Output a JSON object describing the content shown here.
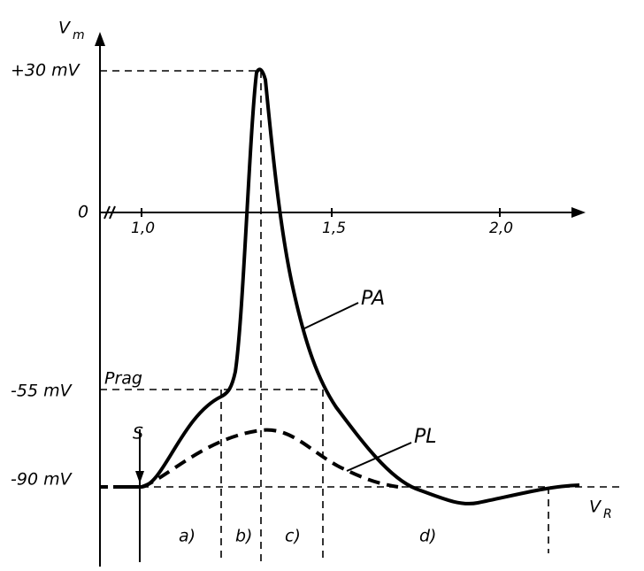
{
  "axes": {
    "y_label": {
      "symbol": "V",
      "subscript": "m"
    },
    "x_label": {
      "symbol": "V",
      "subscript": "R"
    },
    "y_ticks": [
      "+30 mV",
      "0",
      "-55 mV",
      "-90 mV"
    ],
    "x_ticks": [
      "1,0",
      "1,5",
      "2,0"
    ]
  },
  "labels": {
    "threshold": "Prag",
    "stimulus": "S",
    "action_potential": "PA",
    "local_potential": "PL"
  },
  "phases": [
    "a)",
    "b)",
    "c)",
    "d)"
  ]
}
